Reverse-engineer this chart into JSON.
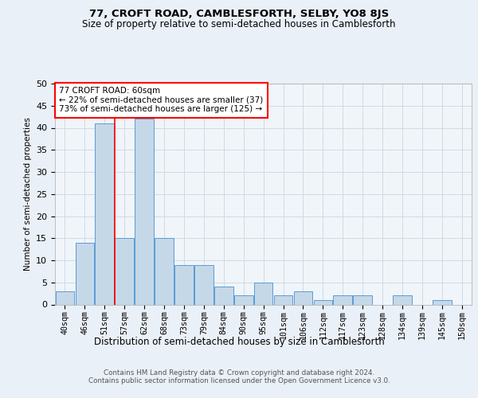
{
  "title1": "77, CROFT ROAD, CAMBLESFORTH, SELBY, YO8 8JS",
  "title2": "Size of property relative to semi-detached houses in Camblesforth",
  "xlabel": "Distribution of semi-detached houses by size in Camblesforth",
  "ylabel": "Number of semi-detached properties",
  "footnote": "Contains HM Land Registry data © Crown copyright and database right 2024.\nContains public sector information licensed under the Open Government Licence v3.0.",
  "bar_labels": [
    "40sqm",
    "46sqm",
    "51sqm",
    "57sqm",
    "62sqm",
    "68sqm",
    "73sqm",
    "79sqm",
    "84sqm",
    "90sqm",
    "95sqm",
    "101sqm",
    "106sqm",
    "112sqm",
    "117sqm",
    "123sqm",
    "128sqm",
    "134sqm",
    "139sqm",
    "145sqm",
    "150sqm"
  ],
  "bar_values": [
    3,
    14,
    41,
    15,
    42,
    15,
    9,
    9,
    4,
    2,
    5,
    2,
    3,
    1,
    2,
    2,
    0,
    2,
    0,
    1,
    0
  ],
  "bar_color": "#c5d8e8",
  "bar_edge_color": "#5b9bd5",
  "vline_color": "red",
  "vline_x": 2.5,
  "annotation_title": "77 CROFT ROAD: 60sqm",
  "annotation_line1": "← 22% of semi-detached houses are smaller (37)",
  "annotation_line2": "73% of semi-detached houses are larger (125) →",
  "ylim": [
    0,
    50
  ],
  "yticks": [
    0,
    5,
    10,
    15,
    20,
    25,
    30,
    35,
    40,
    45,
    50
  ],
  "bg_color": "#eaf0f7",
  "plot_bg_color": "#f0f5fa",
  "grid_color": "#d0dae5"
}
